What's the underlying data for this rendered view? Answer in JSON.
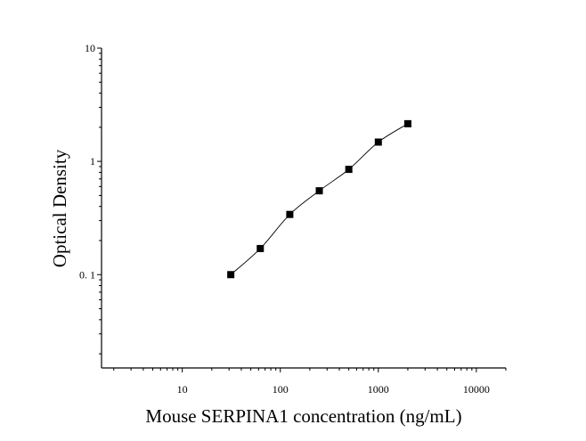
{
  "chart_data": {
    "type": "scatter",
    "xlabel": "Mouse SERPINA1 concentration (ng/mL)",
    "ylabel": "Optical Density",
    "xscale": "log",
    "yscale": "log",
    "xlim": [
      1.5,
      20000
    ],
    "ylim": [
      0.015,
      10
    ],
    "x_ticks": [
      {
        "value": 10,
        "label": "10"
      },
      {
        "value": 100,
        "label": "100"
      },
      {
        "value": 1000,
        "label": "1000"
      },
      {
        "value": 10000,
        "label": "10000"
      }
    ],
    "y_ticks": [
      {
        "value": 0.1,
        "label": "0. 1"
      },
      {
        "value": 1,
        "label": "1"
      },
      {
        "value": 10,
        "label": "10"
      }
    ],
    "grid": false,
    "legend": "none",
    "series": [
      {
        "marker": "square",
        "color": "#000000",
        "x": [
          31.25,
          62.5,
          125,
          250,
          500,
          1000,
          2000
        ],
        "y": [
          0.1,
          0.17,
          0.34,
          0.55,
          0.85,
          1.48,
          2.15
        ]
      }
    ],
    "fit_line": {
      "color": "#000000"
    }
  }
}
